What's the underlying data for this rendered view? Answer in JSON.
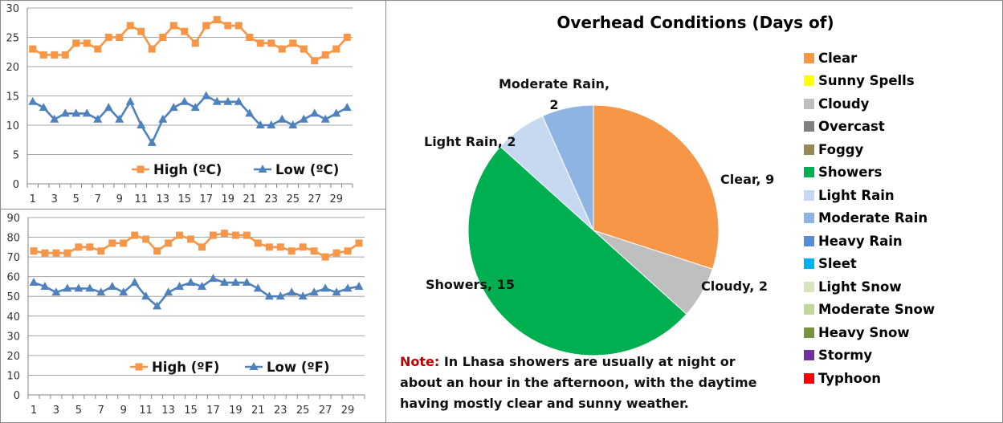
{
  "chart_data": [
    {
      "type": "line",
      "title": "",
      "x": [
        1,
        2,
        3,
        4,
        5,
        6,
        7,
        8,
        9,
        10,
        11,
        12,
        13,
        14,
        15,
        16,
        17,
        18,
        19,
        20,
        21,
        22,
        23,
        24,
        25,
        26,
        27,
        28,
        29,
        30
      ],
      "x_tick_labels": [
        "1",
        "3",
        "5",
        "7",
        "9",
        "11",
        "13",
        "15",
        "17",
        "19",
        "21",
        "23",
        "25",
        "27",
        "29"
      ],
      "ylim": [
        0,
        30
      ],
      "y_ticks": [
        0,
        5,
        10,
        15,
        20,
        25,
        30
      ],
      "grid": true,
      "legend": "bottom-inside",
      "series": [
        {
          "name": "High (ºC)",
          "color": "#F79646",
          "marker": "square",
          "values": [
            23,
            22,
            22,
            22,
            24,
            24,
            23,
            25,
            25,
            27,
            26,
            23,
            25,
            27,
            26,
            24,
            27,
            28,
            27,
            27,
            25,
            24,
            24,
            23,
            24,
            23,
            21,
            22,
            23,
            25
          ]
        },
        {
          "name": "Low (ºC)",
          "color": "#4F81BD",
          "marker": "triangle",
          "values": [
            14,
            13,
            11,
            12,
            12,
            12,
            11,
            13,
            11,
            14,
            10,
            7,
            11,
            13,
            14,
            13,
            15,
            14,
            14,
            14,
            12,
            10,
            10,
            11,
            10,
            11,
            12,
            11,
            12,
            13
          ]
        }
      ]
    },
    {
      "type": "line",
      "title": "",
      "x": [
        1,
        2,
        3,
        4,
        5,
        6,
        7,
        8,
        9,
        10,
        11,
        12,
        13,
        14,
        15,
        16,
        17,
        18,
        19,
        20,
        21,
        22,
        23,
        24,
        25,
        26,
        27,
        28,
        29,
        30
      ],
      "x_tick_labels": [
        "1",
        "3",
        "5",
        "7",
        "9",
        "11",
        "13",
        "15",
        "17",
        "19",
        "21",
        "23",
        "25",
        "27",
        "29"
      ],
      "ylim": [
        0,
        90
      ],
      "y_ticks": [
        0,
        10,
        20,
        30,
        40,
        50,
        60,
        70,
        80,
        90
      ],
      "grid": true,
      "legend": "bottom-inside",
      "series": [
        {
          "name": "High (ºF)",
          "color": "#F79646",
          "marker": "square",
          "values": [
            73,
            72,
            72,
            72,
            75,
            75,
            73,
            77,
            77,
            81,
            79,
            73,
            77,
            81,
            79,
            75,
            81,
            82,
            81,
            81,
            77,
            75,
            75,
            73,
            75,
            73,
            70,
            72,
            73,
            77
          ]
        },
        {
          "name": "Low (ºF)",
          "color": "#4F81BD",
          "marker": "triangle",
          "values": [
            57,
            55,
            52,
            54,
            54,
            54,
            52,
            55,
            52,
            57,
            50,
            45,
            52,
            55,
            57,
            55,
            59,
            57,
            57,
            57,
            54,
            50,
            50,
            52,
            50,
            52,
            54,
            52,
            54,
            55
          ]
        }
      ]
    },
    {
      "type": "pie",
      "title": "Overhead Conditions (Days of)",
      "slices": [
        {
          "label": "Clear",
          "value": 9,
          "color": "#F79646",
          "data_label": "Clear, 9"
        },
        {
          "label": "Cloudy",
          "value": 2,
          "color": "#BFBFBF",
          "data_label": "Cloudy, 2"
        },
        {
          "label": "Showers",
          "value": 15,
          "color": "#00B050",
          "data_label": "Showers, 15"
        },
        {
          "label": "Light Rain",
          "value": 2,
          "color": "#C6D9F1",
          "data_label": "Light Rain, 2"
        },
        {
          "label": "Moderate Rain",
          "value": 2,
          "color": "#8DB4E2",
          "data_label_lines": [
            "Moderate Rain,",
            "2"
          ]
        }
      ],
      "legend": "right",
      "legend_items": [
        {
          "label": "Clear",
          "color": "#F79646"
        },
        {
          "label": "Sunny Spells",
          "color": "#FFFF00"
        },
        {
          "label": "Cloudy",
          "color": "#BFBFBF"
        },
        {
          "label": "Overcast",
          "color": "#808080"
        },
        {
          "label": "Foggy",
          "color": "#948A54"
        },
        {
          "label": "Showers",
          "color": "#00B050"
        },
        {
          "label": "Light Rain",
          "color": "#C6D9F1"
        },
        {
          "label": "Moderate Rain",
          "color": "#8DB4E2"
        },
        {
          "label": "Heavy Rain",
          "color": "#558ED5"
        },
        {
          "label": "Sleet",
          "color": "#00B0F0"
        },
        {
          "label": "Light Snow",
          "color": "#D7E4BD"
        },
        {
          "label": "Moderate Snow",
          "color": "#C3D69B"
        },
        {
          "label": "Heavy Snow",
          "color": "#77933C"
        },
        {
          "label": "Stormy",
          "color": "#7030A0"
        },
        {
          "label": "Typhoon",
          "color": "#FF0000"
        }
      ]
    }
  ],
  "note": {
    "label": "Note:",
    "text": " In Lhasa showers are usually at night or about an hour in the afternoon, with the daytime having mostly clear and sunny weather."
  }
}
